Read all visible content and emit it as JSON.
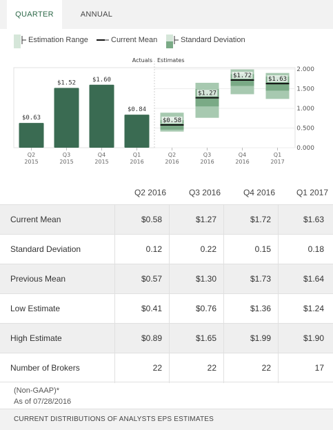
{
  "tabs": [
    {
      "label": "QUARTER",
      "active": true
    },
    {
      "label": "ANNUAL",
      "active": false
    }
  ],
  "legend": {
    "estimation_range": "Estimation Range",
    "current_mean": "Current Mean",
    "standard_deviation": "Standard Deviation"
  },
  "colors": {
    "actual_bar": "#3a6b52",
    "range_light": "#a7c9b0",
    "sd_dark": "#7aaa86",
    "accent": "#2f6a4a"
  },
  "chart_data": {
    "type": "bar",
    "categories": [
      "Q2 2015",
      "Q3 2015",
      "Q4 2015",
      "Q1 2016",
      "Q2 2016",
      "Q3 2016",
      "Q4 2016",
      "Q1 2017"
    ],
    "x_tick_labels": [
      [
        "Q2",
        "2015"
      ],
      [
        "Q3",
        "2015"
      ],
      [
        "Q4",
        "2015"
      ],
      [
        "Q1",
        "2016"
      ],
      [
        "Q2",
        "2016"
      ],
      [
        "Q3",
        "2016"
      ],
      [
        "Q4",
        "2016"
      ],
      [
        "Q1",
        "2017"
      ]
    ],
    "section_labels": {
      "actuals": "Actuals",
      "estimates": "Estimates"
    },
    "actuals": [
      {
        "period": "Q2 2015",
        "value": 0.63,
        "label": "$0.63"
      },
      {
        "period": "Q3 2015",
        "value": 1.52,
        "label": "$1.52"
      },
      {
        "period": "Q4 2015",
        "value": 1.6,
        "label": "$1.60"
      },
      {
        "period": "Q1 2016",
        "value": 0.84,
        "label": "$0.84"
      }
    ],
    "estimates": [
      {
        "period": "Q2 2016",
        "mean": 0.58,
        "sd": 0.12,
        "low": 0.41,
        "high": 0.89,
        "label": "$0.58"
      },
      {
        "period": "Q3 2016",
        "mean": 1.27,
        "sd": 0.22,
        "low": 0.76,
        "high": 1.65,
        "label": "$1.27"
      },
      {
        "period": "Q4 2016",
        "mean": 1.72,
        "sd": 0.15,
        "low": 1.36,
        "high": 1.99,
        "label": "$1.72"
      },
      {
        "period": "Q1 2017",
        "mean": 1.63,
        "sd": 0.18,
        "low": 1.24,
        "high": 1.9,
        "label": "$1.63"
      }
    ],
    "y_ticks": [
      "0.000",
      "0.500",
      "1.000",
      "1.500",
      "2.000"
    ],
    "ylim": [
      0,
      2.0
    ],
    "grid": true
  },
  "table": {
    "columns": [
      "Q2 2016",
      "Q3 2016",
      "Q4 2016",
      "Q1 2017"
    ],
    "rows": [
      {
        "label": "Current Mean",
        "values": [
          "$0.58",
          "$1.27",
          "$1.72",
          "$1.63"
        ]
      },
      {
        "label": "Standard Deviation",
        "values": [
          "0.12",
          "0.22",
          "0.15",
          "0.18"
        ]
      },
      {
        "label": "Previous Mean",
        "values": [
          "$0.57",
          "$1.30",
          "$1.73",
          "$1.64"
        ]
      },
      {
        "label": "Low Estimate",
        "values": [
          "$0.41",
          "$0.76",
          "$1.36",
          "$1.24"
        ]
      },
      {
        "label": "High Estimate",
        "values": [
          "$0.89",
          "$1.65",
          "$1.99",
          "$1.90"
        ]
      },
      {
        "label": "Number of Brokers",
        "values": [
          "22",
          "22",
          "22",
          "17"
        ]
      }
    ]
  },
  "footnote": {
    "gaap": "(Non-GAAP)*",
    "as_of": "As of 07/28/2016"
  },
  "footer": {
    "label": "CURRENT DISTRIBUTIONS OF ANALYSTS EPS ESTIMATES"
  }
}
